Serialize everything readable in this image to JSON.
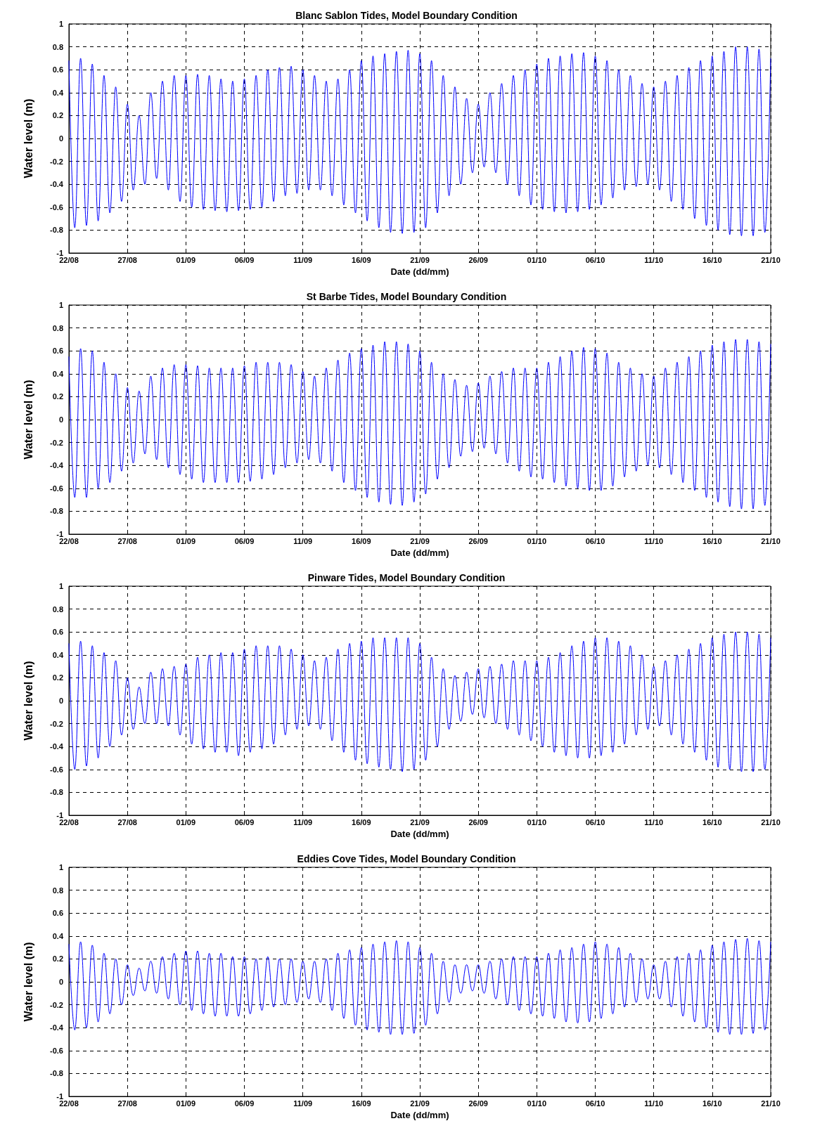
{
  "chart_data": [
    {
      "type": "line",
      "title": "Blanc Sablon Tides, Model Boundary Condition",
      "xlabel": "Date (dd/mm)",
      "ylabel": "Water level (m)",
      "grid": true,
      "marker": "none",
      "line_style": "solid",
      "xlim": [
        "--08-22",
        "--10-21"
      ],
      "ylim": [
        -1,
        1
      ],
      "yticks": [
        -1,
        -0.8,
        -0.6,
        -0.4,
        -0.2,
        0,
        0.2,
        0.4,
        0.6,
        0.8,
        1
      ],
      "xticks": [
        {
          "value": "--08-22",
          "label": "22/08"
        },
        {
          "value": "--08-27",
          "label": "27/08"
        },
        {
          "value": "--09-01",
          "label": "01/09"
        },
        {
          "value": "--09-06",
          "label": "06/09"
        },
        {
          "value": "--09-11",
          "label": "11/09"
        },
        {
          "value": "--09-16",
          "label": "16/09"
        },
        {
          "value": "--09-21",
          "label": "21/09"
        },
        {
          "value": "--09-26",
          "label": "26/09"
        },
        {
          "value": "--10-01",
          "label": "01/10"
        },
        {
          "value": "--10-06",
          "label": "06/10"
        },
        {
          "value": "--10-11",
          "label": "11/10"
        },
        {
          "value": "--10-16",
          "label": "16/10"
        },
        {
          "value": "--10-21",
          "label": "21/10"
        }
      ],
      "x": [
        "--08-22T00:00",
        "--08-22T12:00",
        "--08-23T00:00",
        "--08-23T12:00",
        "--08-24T00:00",
        "--08-24T12:00",
        "--08-25T00:00",
        "--08-25T12:00",
        "--08-26T00:00",
        "--08-26T12:00",
        "--08-27T00:00",
        "--08-27T12:00",
        "--08-28T00:00",
        "--08-28T12:00",
        "--08-29T00:00",
        "--08-29T12:00",
        "--08-30T00:00",
        "--08-30T12:00",
        "--08-31T00:00",
        "--08-31T12:00",
        "--09-01T00:00",
        "--09-01T12:00",
        "--09-02T00:00",
        "--09-02T12:00",
        "--09-03T00:00",
        "--09-03T12:00",
        "--09-04T00:00",
        "--09-04T12:00",
        "--09-05T00:00",
        "--09-05T12:00",
        "--09-06T00:00",
        "--09-06T12:00",
        "--09-07T00:00",
        "--09-07T12:00",
        "--09-08T00:00",
        "--09-08T12:00",
        "--09-09T00:00",
        "--09-09T12:00",
        "--09-10T00:00",
        "--09-10T12:00",
        "--09-11T00:00",
        "--09-11T12:00",
        "--09-12T00:00",
        "--09-12T12:00",
        "--09-13T00:00",
        "--09-13T12:00",
        "--09-14T00:00",
        "--09-14T12:00",
        "--09-15T00:00",
        "--09-15T12:00",
        "--09-16T00:00",
        "--09-16T12:00",
        "--09-17T00:00",
        "--09-17T12:00",
        "--09-18T00:00",
        "--09-18T12:00",
        "--09-19T00:00",
        "--09-19T12:00",
        "--09-20T00:00",
        "--09-20T12:00",
        "--09-21T00:00",
        "--09-21T12:00",
        "--09-22T00:00",
        "--09-22T12:00",
        "--09-23T00:00",
        "--09-23T12:00",
        "--09-24T00:00",
        "--09-24T12:00",
        "--09-25T00:00",
        "--09-25T12:00",
        "--09-26T00:00",
        "--09-26T12:00",
        "--09-27T00:00",
        "--09-27T12:00",
        "--09-28T00:00",
        "--09-28T12:00",
        "--09-29T00:00",
        "--09-29T12:00",
        "--09-30T00:00",
        "--09-30T12:00",
        "--10-01T00:00",
        "--10-01T12:00",
        "--10-02T00:00",
        "--10-02T12:00",
        "--10-03T00:00",
        "--10-03T12:00",
        "--10-04T00:00",
        "--10-04T12:00",
        "--10-05T00:00",
        "--10-05T12:00",
        "--10-06T00:00",
        "--10-06T12:00",
        "--10-07T00:00",
        "--10-07T12:00",
        "--10-08T00:00",
        "--10-08T12:00",
        "--10-09T00:00",
        "--10-09T12:00",
        "--10-10T00:00",
        "--10-10T12:00",
        "--10-11T00:00",
        "--10-11T12:00",
        "--10-12T00:00",
        "--10-12T12:00",
        "--10-13T00:00",
        "--10-13T12:00",
        "--10-14T00:00",
        "--10-14T12:00",
        "--10-15T00:00",
        "--10-15T12:00",
        "--10-16T00:00",
        "--10-16T12:00",
        "--10-17T00:00",
        "--10-17T12:00",
        "--10-18T00:00",
        "--10-18T12:00",
        "--10-19T00:00",
        "--10-19T12:00",
        "--10-20T00:00",
        "--10-20T12:00",
        "--10-21T00:00"
      ],
      "series": [
        {
          "color": "#0000ff",
          "values": [
            0.68,
            -0.78,
            0.7,
            -0.76,
            0.65,
            -0.72,
            0.55,
            -0.65,
            0.45,
            -0.55,
            0.3,
            -0.45,
            0.2,
            -0.4,
            0.4,
            -0.35,
            0.5,
            -0.45,
            0.55,
            -0.55,
            0.55,
            -0.6,
            0.56,
            -0.62,
            0.55,
            -0.63,
            0.52,
            -0.64,
            0.5,
            -0.63,
            0.52,
            -0.62,
            0.55,
            -0.6,
            0.6,
            -0.55,
            0.62,
            -0.5,
            0.63,
            -0.48,
            0.6,
            -0.45,
            0.55,
            -0.45,
            0.5,
            -0.5,
            0.52,
            -0.58,
            0.6,
            -0.65,
            0.68,
            -0.72,
            0.72,
            -0.78,
            0.74,
            -0.82,
            0.76,
            -0.83,
            0.77,
            -0.82,
            0.74,
            -0.78,
            0.68,
            -0.65,
            0.55,
            -0.5,
            0.45,
            -0.4,
            0.35,
            -0.3,
            0.3,
            -0.25,
            0.4,
            -0.3,
            0.48,
            -0.4,
            0.55,
            -0.5,
            0.6,
            -0.58,
            0.65,
            -0.62,
            0.7,
            -0.64,
            0.72,
            -0.65,
            0.74,
            -0.64,
            0.75,
            -0.62,
            0.72,
            -0.58,
            0.68,
            -0.52,
            0.6,
            -0.45,
            0.55,
            -0.42,
            0.48,
            -0.4,
            0.45,
            -0.45,
            0.5,
            -0.55,
            0.55,
            -0.62,
            0.62,
            -0.7,
            0.68,
            -0.76,
            0.72,
            -0.8,
            0.76,
            -0.84,
            0.8,
            -0.85,
            0.8,
            -0.85,
            0.78,
            -0.82,
            0.7
          ]
        }
      ]
    },
    {
      "type": "line",
      "title": "St Barbe Tides, Model Boundary Condition",
      "xlabel": "Date (dd/mm)",
      "ylabel": "Water level (m)",
      "grid": true,
      "marker": "none",
      "line_style": "solid",
      "xlim": [
        "--08-22",
        "--10-21"
      ],
      "ylim": [
        -1,
        1
      ],
      "yticks": [
        -1,
        -0.8,
        -0.6,
        -0.4,
        -0.2,
        0,
        0.2,
        0.4,
        0.6,
        0.8,
        1
      ],
      "xticks": [
        {
          "value": "--08-22",
          "label": "22/08"
        },
        {
          "value": "--08-27",
          "label": "27/08"
        },
        {
          "value": "--09-01",
          "label": "01/09"
        },
        {
          "value": "--09-06",
          "label": "06/09"
        },
        {
          "value": "--09-11",
          "label": "11/09"
        },
        {
          "value": "--09-16",
          "label": "16/09"
        },
        {
          "value": "--09-21",
          "label": "21/09"
        },
        {
          "value": "--09-26",
          "label": "26/09"
        },
        {
          "value": "--10-01",
          "label": "01/10"
        },
        {
          "value": "--10-06",
          "label": "06/10"
        },
        {
          "value": "--10-11",
          "label": "11/10"
        },
        {
          "value": "--10-16",
          "label": "16/10"
        },
        {
          "value": "--10-21",
          "label": "21/10"
        }
      ],
      "x": [
        "--08-22T00:00",
        "--08-22T12:00",
        "--08-23T00:00",
        "--08-23T12:00",
        "--08-24T00:00",
        "--08-24T12:00",
        "--08-25T00:00",
        "--08-25T12:00",
        "--08-26T00:00",
        "--08-26T12:00",
        "--08-27T00:00",
        "--08-27T12:00",
        "--08-28T00:00",
        "--08-28T12:00",
        "--08-29T00:00",
        "--08-29T12:00",
        "--08-30T00:00",
        "--08-30T12:00",
        "--08-31T00:00",
        "--08-31T12:00",
        "--09-01T00:00",
        "--09-01T12:00",
        "--09-02T00:00",
        "--09-02T12:00",
        "--09-03T00:00",
        "--09-03T12:00",
        "--09-04T00:00",
        "--09-04T12:00",
        "--09-05T00:00",
        "--09-05T12:00",
        "--09-06T00:00",
        "--09-06T12:00",
        "--09-07T00:00",
        "--09-07T12:00",
        "--09-08T00:00",
        "--09-08T12:00",
        "--09-09T00:00",
        "--09-09T12:00",
        "--09-10T00:00",
        "--09-10T12:00",
        "--09-11T00:00",
        "--09-11T12:00",
        "--09-12T00:00",
        "--09-12T12:00",
        "--09-13T00:00",
        "--09-13T12:00",
        "--09-14T00:00",
        "--09-14T12:00",
        "--09-15T00:00",
        "--09-15T12:00",
        "--09-16T00:00",
        "--09-16T12:00",
        "--09-17T00:00",
        "--09-17T12:00",
        "--09-18T00:00",
        "--09-18T12:00",
        "--09-19T00:00",
        "--09-19T12:00",
        "--09-20T00:00",
        "--09-20T12:00",
        "--09-21T00:00",
        "--09-21T12:00",
        "--09-22T00:00",
        "--09-22T12:00",
        "--09-23T00:00",
        "--09-23T12:00",
        "--09-24T00:00",
        "--09-24T12:00",
        "--09-25T00:00",
        "--09-25T12:00",
        "--09-26T00:00",
        "--09-26T12:00",
        "--09-27T00:00",
        "--09-27T12:00",
        "--09-28T00:00",
        "--09-28T12:00",
        "--09-29T00:00",
        "--09-29T12:00",
        "--09-30T00:00",
        "--09-30T12:00",
        "--10-01T00:00",
        "--10-01T12:00",
        "--10-02T00:00",
        "--10-02T12:00",
        "--10-03T00:00",
        "--10-03T12:00",
        "--10-04T00:00",
        "--10-04T12:00",
        "--10-05T00:00",
        "--10-05T12:00",
        "--10-06T00:00",
        "--10-06T12:00",
        "--10-07T00:00",
        "--10-07T12:00",
        "--10-08T00:00",
        "--10-08T12:00",
        "--10-09T00:00",
        "--10-09T12:00",
        "--10-10T00:00",
        "--10-10T12:00",
        "--10-11T00:00",
        "--10-11T12:00",
        "--10-12T00:00",
        "--10-12T12:00",
        "--10-13T00:00",
        "--10-13T12:00",
        "--10-14T00:00",
        "--10-14T12:00",
        "--10-15T00:00",
        "--10-15T12:00",
        "--10-16T00:00",
        "--10-16T12:00",
        "--10-17T00:00",
        "--10-17T12:00",
        "--10-18T00:00",
        "--10-18T12:00",
        "--10-19T00:00",
        "--10-19T12:00",
        "--10-20T00:00",
        "--10-20T12:00",
        "--10-21T00:00"
      ],
      "series": [
        {
          "color": "#0000ff",
          "values": [
            0.55,
            -0.68,
            0.62,
            -0.68,
            0.6,
            -0.6,
            0.5,
            -0.55,
            0.4,
            -0.45,
            0.28,
            -0.38,
            0.25,
            -0.3,
            0.38,
            -0.35,
            0.45,
            -0.42,
            0.48,
            -0.48,
            0.48,
            -0.52,
            0.47,
            -0.55,
            0.45,
            -0.55,
            0.45,
            -0.55,
            0.45,
            -0.55,
            0.47,
            -0.54,
            0.5,
            -0.52,
            0.5,
            -0.48,
            0.5,
            -0.42,
            0.48,
            -0.38,
            0.42,
            -0.35,
            0.38,
            -0.38,
            0.45,
            -0.45,
            0.52,
            -0.55,
            0.58,
            -0.62,
            0.62,
            -0.68,
            0.65,
            -0.72,
            0.68,
            -0.74,
            0.68,
            -0.75,
            0.66,
            -0.72,
            0.6,
            -0.65,
            0.5,
            -0.52,
            0.4,
            -0.42,
            0.35,
            -0.32,
            0.3,
            -0.28,
            0.32,
            -0.25,
            0.38,
            -0.3,
            0.42,
            -0.38,
            0.45,
            -0.45,
            0.45,
            -0.5,
            0.45,
            -0.52,
            0.5,
            -0.55,
            0.55,
            -0.58,
            0.6,
            -0.6,
            0.63,
            -0.62,
            0.62,
            -0.62,
            0.58,
            -0.58,
            0.5,
            -0.5,
            0.45,
            -0.45,
            0.4,
            -0.4,
            0.38,
            -0.42,
            0.45,
            -0.48,
            0.5,
            -0.55,
            0.55,
            -0.62,
            0.6,
            -0.68,
            0.65,
            -0.72,
            0.68,
            -0.76,
            0.7,
            -0.78,
            0.7,
            -0.78,
            0.68,
            -0.75,
            0.66
          ]
        }
      ]
    },
    {
      "type": "line",
      "title": "Pinware Tides, Model Boundary Condition",
      "xlabel": "Date (dd/mm)",
      "ylabel": "Water level (m)",
      "grid": true,
      "marker": "none",
      "line_style": "solid",
      "xlim": [
        "--08-22",
        "--10-21"
      ],
      "ylim": [
        -1,
        1
      ],
      "yticks": [
        -1,
        -0.8,
        -0.6,
        -0.4,
        -0.2,
        0,
        0.2,
        0.4,
        0.6,
        0.8,
        1
      ],
      "xticks": [
        {
          "value": "--08-22",
          "label": "22/08"
        },
        {
          "value": "--08-27",
          "label": "27/08"
        },
        {
          "value": "--09-01",
          "label": "01/09"
        },
        {
          "value": "--09-06",
          "label": "06/09"
        },
        {
          "value": "--09-11",
          "label": "11/09"
        },
        {
          "value": "--09-16",
          "label": "16/09"
        },
        {
          "value": "--09-21",
          "label": "21/09"
        },
        {
          "value": "--09-26",
          "label": "26/09"
        },
        {
          "value": "--10-01",
          "label": "01/10"
        },
        {
          "value": "--10-06",
          "label": "06/10"
        },
        {
          "value": "--10-11",
          "label": "11/10"
        },
        {
          "value": "--10-16",
          "label": "16/10"
        },
        {
          "value": "--10-21",
          "label": "21/10"
        }
      ],
      "x": [
        "--08-22T00:00",
        "--08-22T12:00",
        "--08-23T00:00",
        "--08-23T12:00",
        "--08-24T00:00",
        "--08-24T12:00",
        "--08-25T00:00",
        "--08-25T12:00",
        "--08-26T00:00",
        "--08-26T12:00",
        "--08-27T00:00",
        "--08-27T12:00",
        "--08-28T00:00",
        "--08-28T12:00",
        "--08-29T00:00",
        "--08-29T12:00",
        "--08-30T00:00",
        "--08-30T12:00",
        "--08-31T00:00",
        "--08-31T12:00",
        "--09-01T00:00",
        "--09-01T12:00",
        "--09-02T00:00",
        "--09-02T12:00",
        "--09-03T00:00",
        "--09-03T12:00",
        "--09-04T00:00",
        "--09-04T12:00",
        "--09-05T00:00",
        "--09-05T12:00",
        "--09-06T00:00",
        "--09-06T12:00",
        "--09-07T00:00",
        "--09-07T12:00",
        "--09-08T00:00",
        "--09-08T12:00",
        "--09-09T00:00",
        "--09-09T12:00",
        "--09-10T00:00",
        "--09-10T12:00",
        "--09-11T00:00",
        "--09-11T12:00",
        "--09-12T00:00",
        "--09-12T12:00",
        "--09-13T00:00",
        "--09-13T12:00",
        "--09-14T00:00",
        "--09-14T12:00",
        "--09-15T00:00",
        "--09-15T12:00",
        "--09-16T00:00",
        "--09-16T12:00",
        "--09-17T00:00",
        "--09-17T12:00",
        "--09-18T00:00",
        "--09-18T12:00",
        "--09-19T00:00",
        "--09-19T12:00",
        "--09-20T00:00",
        "--09-20T12:00",
        "--09-21T00:00",
        "--09-21T12:00",
        "--09-22T00:00",
        "--09-22T12:00",
        "--09-23T00:00",
        "--09-23T12:00",
        "--09-24T00:00",
        "--09-24T12:00",
        "--09-25T00:00",
        "--09-25T12:00",
        "--09-26T00:00",
        "--09-26T12:00",
        "--09-27T00:00",
        "--09-27T12:00",
        "--09-28T00:00",
        "--09-28T12:00",
        "--09-29T00:00",
        "--09-29T12:00",
        "--09-30T00:00",
        "--09-30T12:00",
        "--10-01T00:00",
        "--10-01T12:00",
        "--10-02T00:00",
        "--10-02T12:00",
        "--10-03T00:00",
        "--10-03T12:00",
        "--10-04T00:00",
        "--10-04T12:00",
        "--10-05T00:00",
        "--10-05T12:00",
        "--10-06T00:00",
        "--10-06T12:00",
        "--10-07T00:00",
        "--10-07T12:00",
        "--10-08T00:00",
        "--10-08T12:00",
        "--10-09T00:00",
        "--10-09T12:00",
        "--10-10T00:00",
        "--10-10T12:00",
        "--10-11T00:00",
        "--10-11T12:00",
        "--10-12T00:00",
        "--10-12T12:00",
        "--10-13T00:00",
        "--10-13T12:00",
        "--10-14T00:00",
        "--10-14T12:00",
        "--10-15T00:00",
        "--10-15T12:00",
        "--10-16T00:00",
        "--10-16T12:00",
        "--10-17T00:00",
        "--10-17T12:00",
        "--10-18T00:00",
        "--10-18T12:00",
        "--10-19T00:00",
        "--10-19T12:00",
        "--10-20T00:00",
        "--10-20T12:00",
        "--10-21T00:00"
      ],
      "series": [
        {
          "color": "#0000ff",
          "values": [
            0.5,
            -0.6,
            0.52,
            -0.57,
            0.48,
            -0.5,
            0.42,
            -0.4,
            0.35,
            -0.3,
            0.2,
            -0.25,
            0.12,
            -0.2,
            0.25,
            -0.2,
            0.28,
            -0.22,
            0.3,
            -0.3,
            0.32,
            -0.38,
            0.38,
            -0.42,
            0.4,
            -0.45,
            0.42,
            -0.45,
            0.42,
            -0.48,
            0.45,
            -0.45,
            0.48,
            -0.42,
            0.48,
            -0.38,
            0.48,
            -0.3,
            0.45,
            -0.25,
            0.4,
            -0.22,
            0.35,
            -0.25,
            0.38,
            -0.35,
            0.45,
            -0.45,
            0.5,
            -0.52,
            0.52,
            -0.55,
            0.55,
            -0.58,
            0.55,
            -0.6,
            0.55,
            -0.62,
            0.55,
            -0.6,
            0.5,
            -0.52,
            0.38,
            -0.4,
            0.28,
            -0.25,
            0.22,
            -0.18,
            0.25,
            -0.12,
            0.28,
            -0.15,
            0.3,
            -0.2,
            0.32,
            -0.25,
            0.35,
            -0.3,
            0.35,
            -0.35,
            0.35,
            -0.4,
            0.38,
            -0.45,
            0.42,
            -0.48,
            0.48,
            -0.5,
            0.52,
            -0.5,
            0.55,
            -0.48,
            0.55,
            -0.45,
            0.52,
            -0.38,
            0.48,
            -0.3,
            0.4,
            -0.25,
            0.3,
            -0.22,
            0.35,
            -0.3,
            0.4,
            -0.38,
            0.45,
            -0.45,
            0.5,
            -0.52,
            0.55,
            -0.58,
            0.58,
            -0.6,
            0.6,
            -0.62,
            0.6,
            -0.62,
            0.58,
            -0.6,
            0.55
          ]
        }
      ]
    },
    {
      "type": "line",
      "title": "Eddies Cove Tides, Model Boundary Condition",
      "xlabel": "Date (dd/mm)",
      "ylabel": "Water level (m)",
      "grid": true,
      "marker": "none",
      "line_style": "solid",
      "xlim": [
        "--08-22",
        "--10-21"
      ],
      "ylim": [
        -1,
        1
      ],
      "yticks": [
        -1,
        -0.8,
        -0.6,
        -0.4,
        -0.2,
        0,
        0.2,
        0.4,
        0.6,
        0.8,
        1
      ],
      "xticks": [
        {
          "value": "--08-22",
          "label": "22/08"
        },
        {
          "value": "--08-27",
          "label": "27/08"
        },
        {
          "value": "--09-01",
          "label": "01/09"
        },
        {
          "value": "--09-06",
          "label": "06/09"
        },
        {
          "value": "--09-11",
          "label": "11/09"
        },
        {
          "value": "--09-16",
          "label": "16/09"
        },
        {
          "value": "--09-21",
          "label": "21/09"
        },
        {
          "value": "--09-26",
          "label": "26/09"
        },
        {
          "value": "--10-01",
          "label": "01/10"
        },
        {
          "value": "--10-06",
          "label": "06/10"
        },
        {
          "value": "--10-11",
          "label": "11/10"
        },
        {
          "value": "--10-16",
          "label": "16/10"
        },
        {
          "value": "--10-21",
          "label": "21/10"
        }
      ],
      "x": [
        "--08-22T00:00",
        "--08-22T12:00",
        "--08-23T00:00",
        "--08-23T12:00",
        "--08-24T00:00",
        "--08-24T12:00",
        "--08-25T00:00",
        "--08-25T12:00",
        "--08-26T00:00",
        "--08-26T12:00",
        "--08-27T00:00",
        "--08-27T12:00",
        "--08-28T00:00",
        "--08-28T12:00",
        "--08-29T00:00",
        "--08-29T12:00",
        "--08-30T00:00",
        "--08-30T12:00",
        "--08-31T00:00",
        "--08-31T12:00",
        "--09-01T00:00",
        "--09-01T12:00",
        "--09-02T00:00",
        "--09-02T12:00",
        "--09-03T00:00",
        "--09-03T12:00",
        "--09-04T00:00",
        "--09-04T12:00",
        "--09-05T00:00",
        "--09-05T12:00",
        "--09-06T00:00",
        "--09-06T12:00",
        "--09-07T00:00",
        "--09-07T12:00",
        "--09-08T00:00",
        "--09-08T12:00",
        "--09-09T00:00",
        "--09-09T12:00",
        "--09-10T00:00",
        "--09-10T12:00",
        "--09-11T00:00",
        "--09-11T12:00",
        "--09-12T00:00",
        "--09-12T12:00",
        "--09-13T00:00",
        "--09-13T12:00",
        "--09-14T00:00",
        "--09-14T12:00",
        "--09-15T00:00",
        "--09-15T12:00",
        "--09-16T00:00",
        "--09-16T12:00",
        "--09-17T00:00",
        "--09-17T12:00",
        "--09-18T00:00",
        "--09-18T12:00",
        "--09-19T00:00",
        "--09-19T12:00",
        "--09-20T00:00",
        "--09-20T12:00",
        "--09-21T00:00",
        "--09-21T12:00",
        "--09-22T00:00",
        "--09-22T12:00",
        "--09-23T00:00",
        "--09-23T12:00",
        "--09-24T00:00",
        "--09-24T12:00",
        "--09-25T00:00",
        "--09-25T12:00",
        "--09-26T00:00",
        "--09-26T12:00",
        "--09-27T00:00",
        "--09-27T12:00",
        "--09-28T00:00",
        "--09-28T12:00",
        "--09-29T00:00",
        "--09-29T12:00",
        "--09-30T00:00",
        "--09-30T12:00",
        "--10-01T00:00",
        "--10-01T12:00",
        "--10-02T00:00",
        "--10-02T12:00",
        "--10-03T00:00",
        "--10-03T12:00",
        "--10-04T00:00",
        "--10-04T12:00",
        "--10-05T00:00",
        "--10-05T12:00",
        "--10-06T00:00",
        "--10-06T12:00",
        "--10-07T00:00",
        "--10-07T12:00",
        "--10-08T00:00",
        "--10-08T12:00",
        "--10-09T00:00",
        "--10-09T12:00",
        "--10-10T00:00",
        "--10-10T12:00",
        "--10-11T00:00",
        "--10-11T12:00",
        "--10-12T00:00",
        "--10-12T12:00",
        "--10-13T00:00",
        "--10-13T12:00",
        "--10-14T00:00",
        "--10-14T12:00",
        "--10-15T00:00",
        "--10-15T12:00",
        "--10-16T00:00",
        "--10-16T12:00",
        "--10-17T00:00",
        "--10-17T12:00",
        "--10-18T00:00",
        "--10-18T12:00",
        "--10-19T00:00",
        "--10-19T12:00",
        "--10-20T00:00",
        "--10-20T12:00",
        "--10-21T00:00"
      ],
      "series": [
        {
          "color": "#0000ff",
          "values": [
            0.33,
            -0.42,
            0.35,
            -0.4,
            0.32,
            -0.35,
            0.25,
            -0.28,
            0.2,
            -0.2,
            0.15,
            -0.12,
            0.12,
            -0.08,
            0.18,
            -0.1,
            0.22,
            -0.15,
            0.25,
            -0.2,
            0.27,
            -0.25,
            0.27,
            -0.28,
            0.25,
            -0.3,
            0.25,
            -0.3,
            0.22,
            -0.3,
            0.22,
            -0.28,
            0.2,
            -0.25,
            0.22,
            -0.22,
            0.2,
            -0.2,
            0.2,
            -0.18,
            0.18,
            -0.15,
            0.18,
            -0.18,
            0.2,
            -0.25,
            0.25,
            -0.32,
            0.28,
            -0.38,
            0.3,
            -0.42,
            0.33,
            -0.44,
            0.35,
            -0.46,
            0.36,
            -0.46,
            0.35,
            -0.45,
            0.3,
            -0.38,
            0.25,
            -0.28,
            0.18,
            -0.18,
            0.15,
            -0.1,
            0.15,
            -0.08,
            0.15,
            -0.1,
            0.18,
            -0.15,
            0.2,
            -0.2,
            0.22,
            -0.25,
            0.22,
            -0.28,
            0.22,
            -0.3,
            0.25,
            -0.32,
            0.28,
            -0.35,
            0.3,
            -0.36,
            0.33,
            -0.35,
            0.35,
            -0.32,
            0.33,
            -0.28,
            0.3,
            -0.22,
            0.25,
            -0.18,
            0.2,
            -0.15,
            0.15,
            -0.15,
            0.18,
            -0.22,
            0.22,
            -0.3,
            0.25,
            -0.35,
            0.28,
            -0.4,
            0.32,
            -0.44,
            0.35,
            -0.46,
            0.37,
            -0.46,
            0.38,
            -0.45,
            0.36,
            -0.42,
            0.35
          ]
        }
      ]
    }
  ]
}
